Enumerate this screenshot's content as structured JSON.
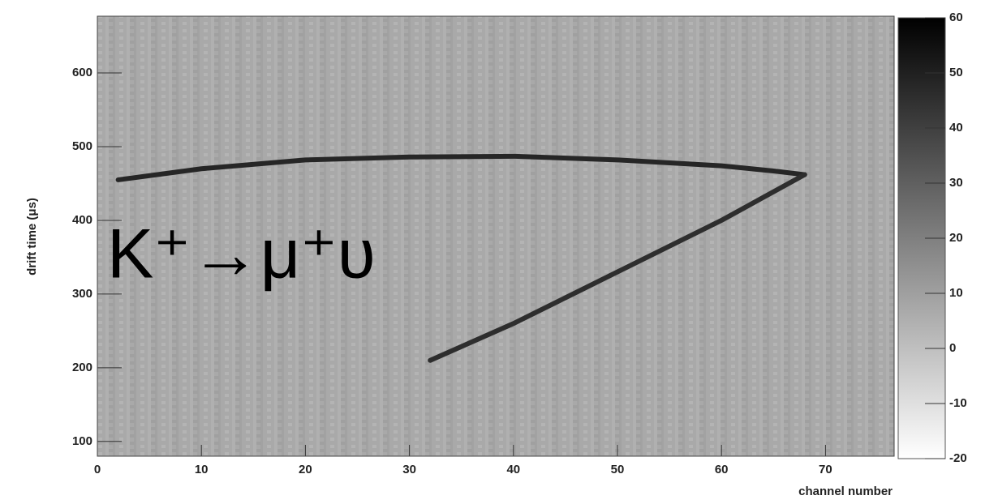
{
  "chart_data": {
    "type": "track",
    "annotation": "K⁺→μ⁺υ",
    "xlabel": "channel number",
    "ylabel": "drift time (μs)",
    "xlim": [
      0,
      76.6
    ],
    "xticks": [
      0,
      10,
      20,
      30,
      40,
      50,
      60,
      70
    ],
    "ylim": [
      80,
      677
    ],
    "yticks": [
      100,
      200,
      300,
      400,
      500,
      600
    ],
    "zlim": [
      -20,
      60
    ],
    "zticks": [
      -20,
      -10,
      0,
      10,
      20,
      30,
      40,
      50,
      60
    ],
    "series": [
      {
        "color": "#262626",
        "x": [
          2,
          10,
          20,
          30,
          40,
          50,
          60,
          65,
          68
        ],
        "values": [
          455,
          470,
          482,
          486,
          487,
          482,
          474,
          467,
          462
        ]
      },
      {
        "color": "#2e2e2e",
        "x": [
          32,
          40,
          50,
          60,
          68
        ],
        "values": [
          210,
          260,
          330,
          400,
          462
        ]
      }
    ]
  }
}
